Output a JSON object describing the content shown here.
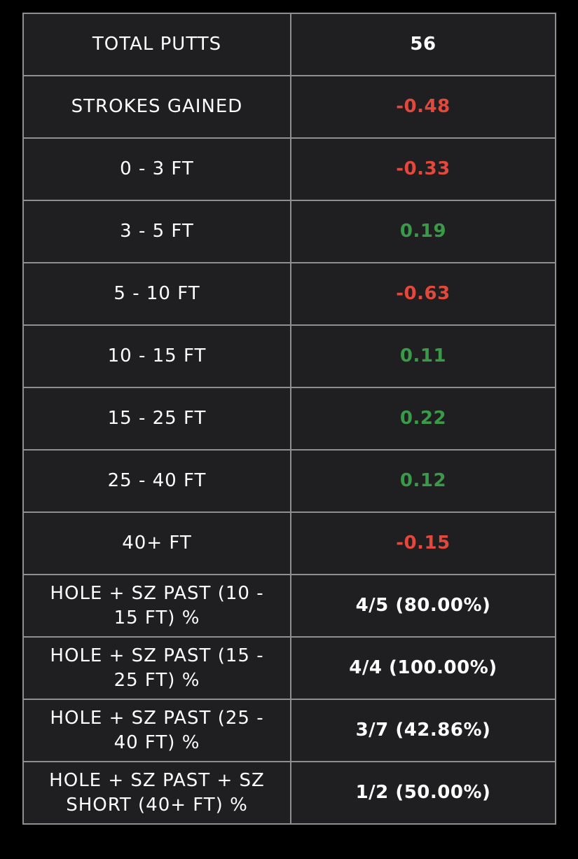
{
  "colors": {
    "background": "#000000",
    "cell_background": "#1f1f21",
    "border": "#8f8f8f",
    "text": "#ffffff",
    "negative": "#e2493c",
    "positive": "#3a9a48"
  },
  "rows": [
    {
      "label": "TOTAL PUTTS",
      "value": "56",
      "tone": "neutral"
    },
    {
      "label": "STROKES GAINED",
      "value": "-0.48",
      "tone": "negative"
    },
    {
      "label": "0 - 3 FT",
      "value": "-0.33",
      "tone": "negative"
    },
    {
      "label": "3 - 5 FT",
      "value": "0.19",
      "tone": "positive"
    },
    {
      "label": "5 - 10 FT",
      "value": "-0.63",
      "tone": "negative"
    },
    {
      "label": "10 - 15 FT",
      "value": "0.11",
      "tone": "positive"
    },
    {
      "label": "15 - 25 FT",
      "value": "0.22",
      "tone": "positive"
    },
    {
      "label": "25 - 40 FT",
      "value": "0.12",
      "tone": "positive"
    },
    {
      "label": "40+ FT",
      "value": "-0.15",
      "tone": "negative"
    },
    {
      "label": "HOLE + SZ PAST (10 - 15 FT) %",
      "value": "4/5 (80.00%)",
      "tone": "neutral"
    },
    {
      "label": "HOLE + SZ PAST (15 - 25 FT) %",
      "value": "4/4 (100.00%)",
      "tone": "neutral"
    },
    {
      "label": "HOLE + SZ PAST (25 - 40 FT) %",
      "value": "3/7 (42.86%)",
      "tone": "neutral"
    },
    {
      "label": "HOLE + SZ PAST + SZ SHORT (40+ FT) %",
      "value": "1/2 (50.00%)",
      "tone": "neutral"
    }
  ]
}
